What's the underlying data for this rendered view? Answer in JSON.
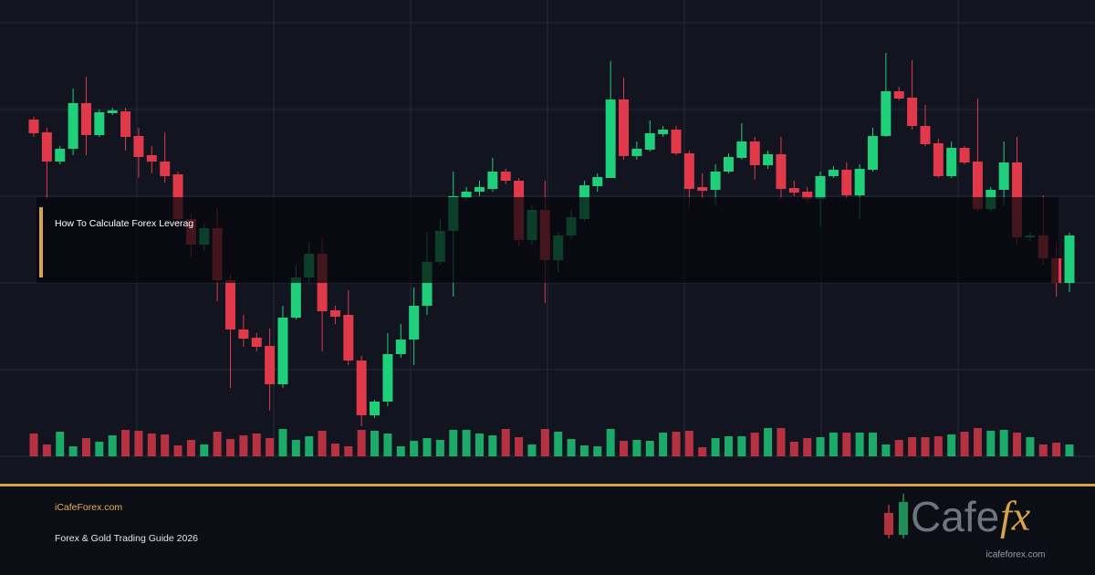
{
  "banner": {
    "title": "How To Calculate Forex Leverag",
    "site": "iCafeForex.com",
    "subtitle": "Forex & Gold Trading Guide 2026",
    "logo": {
      "word": "Cafe",
      "mark": "fx",
      "url": "icafeforex.com"
    }
  },
  "chart_data": {
    "type": "candlestick",
    "up_color": "#1fcf7a",
    "down_color": "#e0394a",
    "ylim": [
      0,
      500
    ],
    "volume_ylim": [
      0,
      500
    ],
    "open": [
      369,
      355,
      323,
      337,
      387,
      352,
      376,
      378,
      351,
      330,
      323,
      309,
      260,
      232,
      250,
      193,
      139,
      130,
      121,
      79,
      152,
      196,
      222,
      160,
      155,
      105,
      45,
      60,
      112,
      128,
      165,
      213,
      247,
      283,
      290,
      293,
      312,
      302,
      237,
      270,
      215,
      242,
      260,
      296,
      305,
      391,
      329,
      336,
      353,
      358,
      332,
      295,
      292,
      312,
      327,
      345,
      319,
      331,
      294,
      290,
      282,
      307,
      314,
      286,
      314,
      351,
      400,
      393,
      362,
      343,
      307,
      338,
      323,
      271,
      292,
      322,
      240,
      242,
      217,
      190
    ],
    "high": [
      372,
      360,
      340,
      403,
      416,
      380,
      382,
      382,
      360,
      340,
      355,
      312,
      265,
      255,
      272,
      200,
      155,
      135,
      140,
      165,
      210,
      235,
      240,
      165,
      182,
      110,
      62,
      135,
      145,
      185,
      245,
      260,
      312,
      295,
      302,
      327,
      315,
      305,
      275,
      302,
      245,
      270,
      302,
      310,
      433,
      415,
      345,
      368,
      362,
      362,
      335,
      310,
      320,
      332,
      365,
      350,
      335,
      350,
      302,
      295,
      312,
      318,
      322,
      320,
      360,
      442,
      405,
      434,
      385,
      348,
      345,
      340,
      392,
      295,
      345,
      350,
      245,
      286,
      235,
      245
    ],
    "low": [
      350,
      282,
      320,
      330,
      330,
      350,
      374,
      335,
      305,
      310,
      300,
      250,
      217,
      225,
      170,
      75,
      120,
      115,
      50,
      75,
      150,
      190,
      115,
      145,
      100,
      33,
      42,
      55,
      108,
      100,
      155,
      210,
      175,
      280,
      285,
      290,
      298,
      230,
      232,
      168,
      202,
      238,
      258,
      290,
      305,
      325,
      325,
      334,
      350,
      330,
      272,
      282,
      275,
      310,
      325,
      303,
      315,
      282,
      285,
      278,
      252,
      305,
      282,
      260,
      312,
      350,
      390,
      358,
      340,
      305,
      305,
      320,
      268,
      268,
      275,
      232,
      236,
      210,
      175,
      180
    ],
    "close": [
      354,
      323,
      337,
      387,
      352,
      377,
      379,
      350,
      328,
      323,
      307,
      260,
      232,
      250,
      193,
      139,
      129,
      120,
      79,
      152,
      196,
      222,
      159,
      153,
      105,
      45,
      60,
      112,
      128,
      165,
      213,
      247,
      285,
      290,
      295,
      312,
      302,
      237,
      270,
      215,
      242,
      262,
      297,
      306,
      391,
      329,
      337,
      354,
      358,
      332,
      293,
      291,
      312,
      328,
      345,
      319,
      331,
      293,
      289,
      282,
      307,
      314,
      286,
      315,
      351,
      400,
      392,
      362,
      342,
      307,
      338,
      322,
      271,
      292,
      322,
      240,
      242,
      217,
      190,
      242
    ],
    "volume": [
      25,
      13,
      27,
      11,
      20,
      16,
      23,
      29,
      28,
      25,
      24,
      12,
      18,
      13,
      27,
      19,
      23,
      25,
      20,
      30,
      18,
      22,
      28,
      14,
      11,
      29,
      28,
      25,
      11,
      17,
      20,
      18,
      29,
      29,
      25,
      23,
      30,
      21,
      13,
      30,
      27,
      19,
      12,
      11,
      30,
      17,
      18,
      17,
      26,
      27,
      28,
      10,
      20,
      22,
      22,
      26,
      31,
      31,
      16,
      20,
      21,
      26,
      26,
      26,
      26,
      13,
      18,
      21,
      21,
      22,
      24,
      27,
      31,
      28,
      29,
      26,
      21,
      13,
      15,
      13
    ]
  }
}
